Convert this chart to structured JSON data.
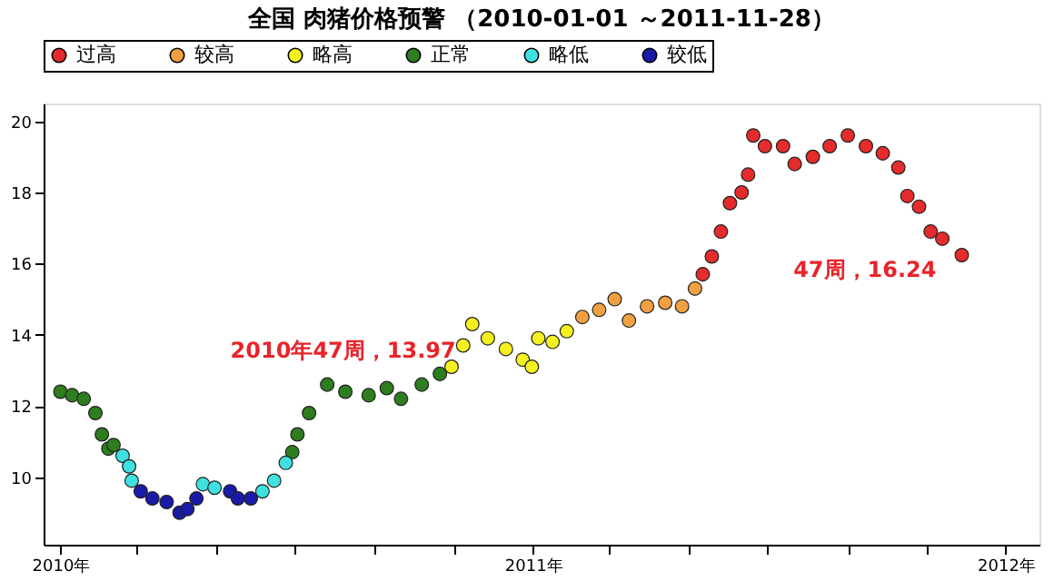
{
  "chart_data": {
    "type": "scatter",
    "title": "全国 肉猪价格预警 （2010-01-01 ～2011-11-28）",
    "series": [
      {
        "name": "过高",
        "color": "#e52b2b",
        "x": [
          "2011-05-12",
          "2011-05-19",
          "2011-05-26",
          "2011-06-02",
          "2011-06-11",
          "2011-06-16",
          "2011-06-20",
          "2011-06-29",
          "2011-07-13",
          "2011-07-22",
          "2011-08-05",
          "2011-08-18",
          "2011-09-01",
          "2011-09-15",
          "2011-09-28",
          "2011-10-10",
          "2011-10-17",
          "2011-10-26",
          "2011-11-04",
          "2011-11-13",
          "2011-11-28"
        ],
        "values": [
          15.7,
          16.2,
          16.9,
          17.7,
          18.0,
          18.5,
          19.6,
          19.3,
          19.3,
          18.8,
          19.0,
          19.3,
          19.6,
          19.3,
          19.1,
          18.7,
          17.9,
          17.6,
          16.9,
          16.7,
          16.24
        ]
      },
      {
        "name": "较高",
        "color": "#f0a040",
        "x": [
          "2011-02-08",
          "2011-02-21",
          "2011-03-05",
          "2011-03-16",
          "2011-03-30",
          "2011-04-13",
          "2011-04-26",
          "2011-05-06"
        ],
        "values": [
          14.5,
          14.7,
          15.0,
          14.4,
          14.8,
          14.9,
          14.8,
          15.3
        ]
      },
      {
        "name": "略高",
        "color": "#f5f020",
        "x": [
          "2010-10-30",
          "2010-11-08",
          "2010-11-15",
          "2010-11-27",
          "2010-12-11",
          "2010-12-24",
          "2010-12-31",
          "2011-01-05",
          "2011-01-16",
          "2011-01-27"
        ],
        "values": [
          13.1,
          13.7,
          14.3,
          13.9,
          13.6,
          13.3,
          13.1,
          13.9,
          13.8,
          14.1
        ]
      },
      {
        "name": "正常",
        "color": "#2e7d1e",
        "x": [
          "2010-01-01",
          "2010-01-10",
          "2010-01-19",
          "2010-01-28",
          "2010-02-02",
          "2010-02-07",
          "2010-02-11",
          "2010-06-29",
          "2010-07-03",
          "2010-07-12",
          "2010-07-26",
          "2010-08-09",
          "2010-08-27",
          "2010-09-10",
          "2010-09-21",
          "2010-10-07",
          "2010-10-21"
        ],
        "values": [
          12.4,
          12.3,
          12.2,
          11.8,
          11.2,
          10.8,
          10.9,
          10.7,
          11.2,
          11.8,
          12.6,
          12.4,
          12.3,
          12.5,
          12.2,
          12.6,
          12.9
        ]
      },
      {
        "name": "略低",
        "color": "#40e0e0",
        "x": [
          "2010-02-18",
          "2010-02-23",
          "2010-02-25",
          "2010-04-21",
          "2010-04-30",
          "2010-06-06",
          "2010-06-15",
          "2010-06-24"
        ],
        "values": [
          10.6,
          10.3,
          9.9,
          9.8,
          9.7,
          9.6,
          9.9,
          10.4
        ]
      },
      {
        "name": "较低",
        "color": "#1a1aa8",
        "x": [
          "2010-03-04",
          "2010-03-13",
          "2010-03-24",
          "2010-04-03",
          "2010-04-09",
          "2010-04-16",
          "2010-05-12",
          "2010-05-18",
          "2010-05-28"
        ],
        "values": [
          9.6,
          9.4,
          9.3,
          9.0,
          9.1,
          9.4,
          9.6,
          9.4,
          9.4
        ]
      }
    ],
    "annotations": [
      {
        "text": "2010年47周，13.97",
        "x": "2010-11-22",
        "y": 13.97
      },
      {
        "text": "47周，16.24",
        "x": "2011-11-28",
        "y": 16.24
      }
    ],
    "xlim": [
      "2009-12-19",
      "2012-01-27"
    ],
    "xticks": [
      {
        "value": "2010-01-01",
        "label": "2010年"
      },
      {
        "value": "2010-03-01",
        "label": null
      },
      {
        "value": "2010-05-01",
        "label": null
      },
      {
        "value": "2010-07-01",
        "label": null
      },
      {
        "value": "2010-09-01",
        "label": null
      },
      {
        "value": "2010-11-01",
        "label": null
      },
      {
        "value": "2011-01-01",
        "label": "2011年"
      },
      {
        "value": "2011-03-01",
        "label": null
      },
      {
        "value": "2011-05-01",
        "label": null
      },
      {
        "value": "2011-07-01",
        "label": null
      },
      {
        "value": "2011-09-01",
        "label": null
      },
      {
        "value": "2011-11-01",
        "label": null
      },
      {
        "value": "2012-01-01",
        "label": "2012年"
      }
    ],
    "ylim": [
      8.1,
      20.5
    ],
    "yticks": [
      10,
      12,
      14,
      16,
      18,
      20
    ],
    "grid": false,
    "legend": "top",
    "marker": "circle"
  }
}
